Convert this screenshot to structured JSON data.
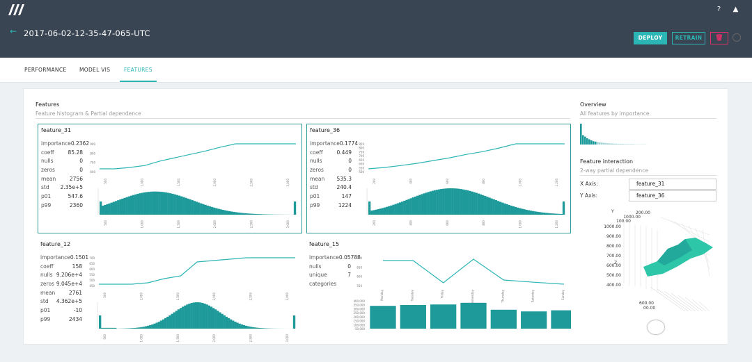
{
  "header": {
    "run_id": "2017-06-02-12-35-47-065-UTC",
    "deploy": "DEPLOY",
    "retrain": "RETRAIN"
  },
  "tabs": [
    {
      "label": "PERFORMANCE"
    },
    {
      "label": "MODEL VIS"
    },
    {
      "label": "FEATURES",
      "active": true
    }
  ],
  "accent": "#2cb5b5",
  "bar_color": "#1e9a9a",
  "features_section": {
    "title": "Features",
    "subtitle": "Feature histogram & Partial dependence"
  },
  "overview": {
    "title": "Overview",
    "subtitle": "All features by importance"
  },
  "interaction": {
    "title": "Feature interaction",
    "subtitle": "2-way partial dependence",
    "x_label": "X Axis:",
    "x_value": "feature_31",
    "y_label": "Y Axis:",
    "y_value": "feature_36",
    "axis_y": "Y",
    "axis_z": "Z",
    "z_ticks": [
      "1000.00",
      "900.00",
      "800.00",
      "700.00",
      "600.00",
      "500.00",
      "400.00"
    ],
    "y_ticks": [
      "200.00",
      "1000.00",
      "100.00"
    ],
    "x_ticks": [
      "600.00",
      "00.00"
    ]
  },
  "features": [
    {
      "name": "feature_31",
      "selected": true,
      "stats": [
        [
          "importance",
          "0.2362"
        ],
        [
          "coeff",
          "85.28"
        ],
        [
          "nulls",
          "0"
        ],
        [
          "zeros",
          "0"
        ],
        [
          "mean",
          "2756"
        ],
        [
          "std",
          "2.35e+5"
        ],
        [
          "p01",
          "547.6"
        ],
        [
          "p99",
          "2360"
        ]
      ],
      "pd": [
        0.1,
        0.1,
        0.15,
        0.22,
        0.38,
        0.5,
        0.62,
        0.74,
        0.88,
        1,
        1,
        1,
        1,
        1
      ],
      "hist_shape": "rskew",
      "pd_ticks": [
        "900",
        "800",
        "700",
        "600"
      ],
      "pd_labels": [
        "500",
        "1,000",
        "1,500",
        "2,000",
        "2,500",
        "3,000"
      ],
      "hist_labels": [
        "500",
        "1,000",
        "1,500",
        "2,000",
        "2,500",
        "3,000"
      ]
    },
    {
      "name": "feature_36",
      "selected": true,
      "stats": [
        [
          "importance",
          "0.1774"
        ],
        [
          "coeff",
          "0.449"
        ],
        [
          "nulls",
          "0"
        ],
        [
          "zeros",
          "0"
        ],
        [
          "mean",
          "535.3"
        ],
        [
          "std",
          "240.4"
        ],
        [
          "p01",
          "147"
        ],
        [
          "p99",
          "1224"
        ]
      ],
      "pd": [
        0.1,
        0.15,
        0.22,
        0.3,
        0.4,
        0.5,
        0.62,
        0.72,
        0.85,
        1,
        1,
        1,
        1
      ],
      "hist_shape": "bell",
      "pd_ticks": [
        "850",
        "800",
        "750",
        "700",
        "650",
        "600",
        "550",
        "500"
      ],
      "pd_labels": [
        "200",
        "400",
        "600",
        "800",
        "1,000",
        "1,200"
      ],
      "hist_labels": [
        "200",
        "400",
        "600",
        "800",
        "1,000",
        "1,200"
      ]
    },
    {
      "name": "feature_12",
      "selected": false,
      "stats": [
        [
          "importance",
          "0.1501"
        ],
        [
          "coeff",
          "158"
        ],
        [
          "nulls",
          "9.206e+4"
        ],
        [
          "zeros",
          "9.045e+4"
        ],
        [
          "mean",
          "2761"
        ],
        [
          "std",
          "4.362e+5"
        ],
        [
          "p01",
          "-10"
        ],
        [
          "p99",
          "2434"
        ]
      ],
      "pd": [
        0.05,
        0.05,
        0.05,
        0.1,
        0.25,
        0.35,
        0.85,
        0.9,
        0.95,
        1,
        1,
        1,
        1
      ],
      "hist_shape": "mid",
      "pd_ticks": [
        "700",
        "650",
        "600",
        "550",
        "500",
        "450"
      ],
      "pd_labels": [
        "500",
        "1,000",
        "1,500",
        "2,000",
        "2,500",
        "3,000"
      ],
      "hist_labels": [
        "500",
        "1,000",
        "1,500",
        "2,000",
        "2,500",
        "3,000"
      ]
    },
    {
      "name": "feature_15",
      "selected": false,
      "categorical": true,
      "stats": [
        [
          "importance",
          "0.05788"
        ],
        [
          "nulls",
          "0"
        ],
        [
          "unique",
          "7"
        ],
        [
          "categories",
          ""
        ]
      ],
      "categories": [
        "Monday",
        "Tuesday",
        "Friday",
        "Wednesday",
        "Thursday",
        "Saturday",
        "Sunday"
      ],
      "pd": [
        0.9,
        0.9,
        0.1,
        0.95,
        0.2,
        0.12,
        0.05
      ],
      "counts": [
        0.82,
        0.85,
        0.87,
        0.93,
        0.68,
        0.62,
        0.66
      ],
      "pd_ticks": [
        "700",
        "650",
        "600",
        "550"
      ],
      "count_ticks": [
        "400,000",
        "350,000",
        "300,000",
        "250,000",
        "200,000",
        "150,000",
        "100,000",
        "50,000"
      ]
    }
  ],
  "overview_bars": [
    1,
    0.45,
    0.38,
    0.3,
    0.25,
    0.2,
    0.16,
    0.14,
    0.12,
    0.1,
    0.09,
    0.08,
    0.07,
    0.06,
    0.05,
    0.05,
    0.04,
    0.04,
    0.03,
    0.03,
    0.03,
    0.02,
    0.02,
    0.02,
    0.02,
    0.02,
    0.01,
    0.01,
    0.01,
    0.01,
    0.01,
    0.01
  ]
}
